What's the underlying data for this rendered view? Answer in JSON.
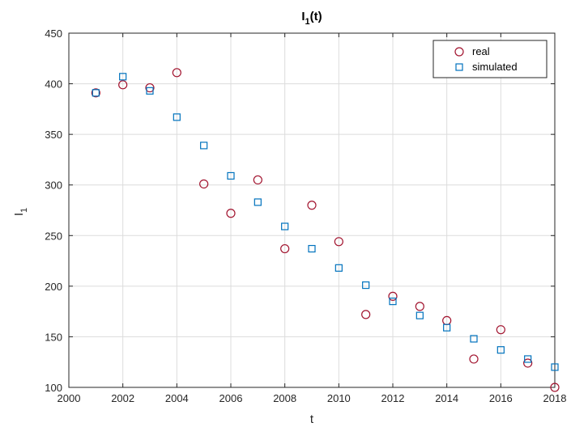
{
  "chart_data": {
    "type": "scatter",
    "title_main": "I",
    "title_sub": "1",
    "title_tail": "(t)",
    "xlabel": "t",
    "ylabel_main": "I",
    "ylabel_sub": "1",
    "xlim": [
      2000,
      2018
    ],
    "ylim": [
      100,
      450
    ],
    "xticks": [
      2000,
      2002,
      2004,
      2006,
      2008,
      2010,
      2012,
      2014,
      2016,
      2018
    ],
    "yticks": [
      100,
      150,
      200,
      250,
      300,
      350,
      400,
      450
    ],
    "grid": true,
    "legend_position": "top-right",
    "series": [
      {
        "name": "real",
        "marker": "circle",
        "color": "#a2142f",
        "x": [
          2001,
          2002,
          2003,
          2004,
          2005,
          2006,
          2007,
          2008,
          2009,
          2010,
          2011,
          2012,
          2013,
          2014,
          2015,
          2016,
          2017,
          2018
        ],
        "y": [
          391,
          399,
          396,
          411,
          301,
          272,
          305,
          237,
          280,
          244,
          172,
          190,
          180,
          166,
          128,
          157,
          124,
          100
        ]
      },
      {
        "name": "simulated",
        "marker": "square",
        "color": "#0072bd",
        "x": [
          2001,
          2002,
          2003,
          2004,
          2005,
          2006,
          2007,
          2008,
          2009,
          2010,
          2011,
          2012,
          2013,
          2014,
          2015,
          2016,
          2017,
          2018
        ],
        "y": [
          391,
          407,
          393,
          367,
          339,
          309,
          283,
          259,
          237,
          218,
          201,
          185,
          171,
          159,
          148,
          137,
          128,
          120
        ]
      }
    ]
  }
}
